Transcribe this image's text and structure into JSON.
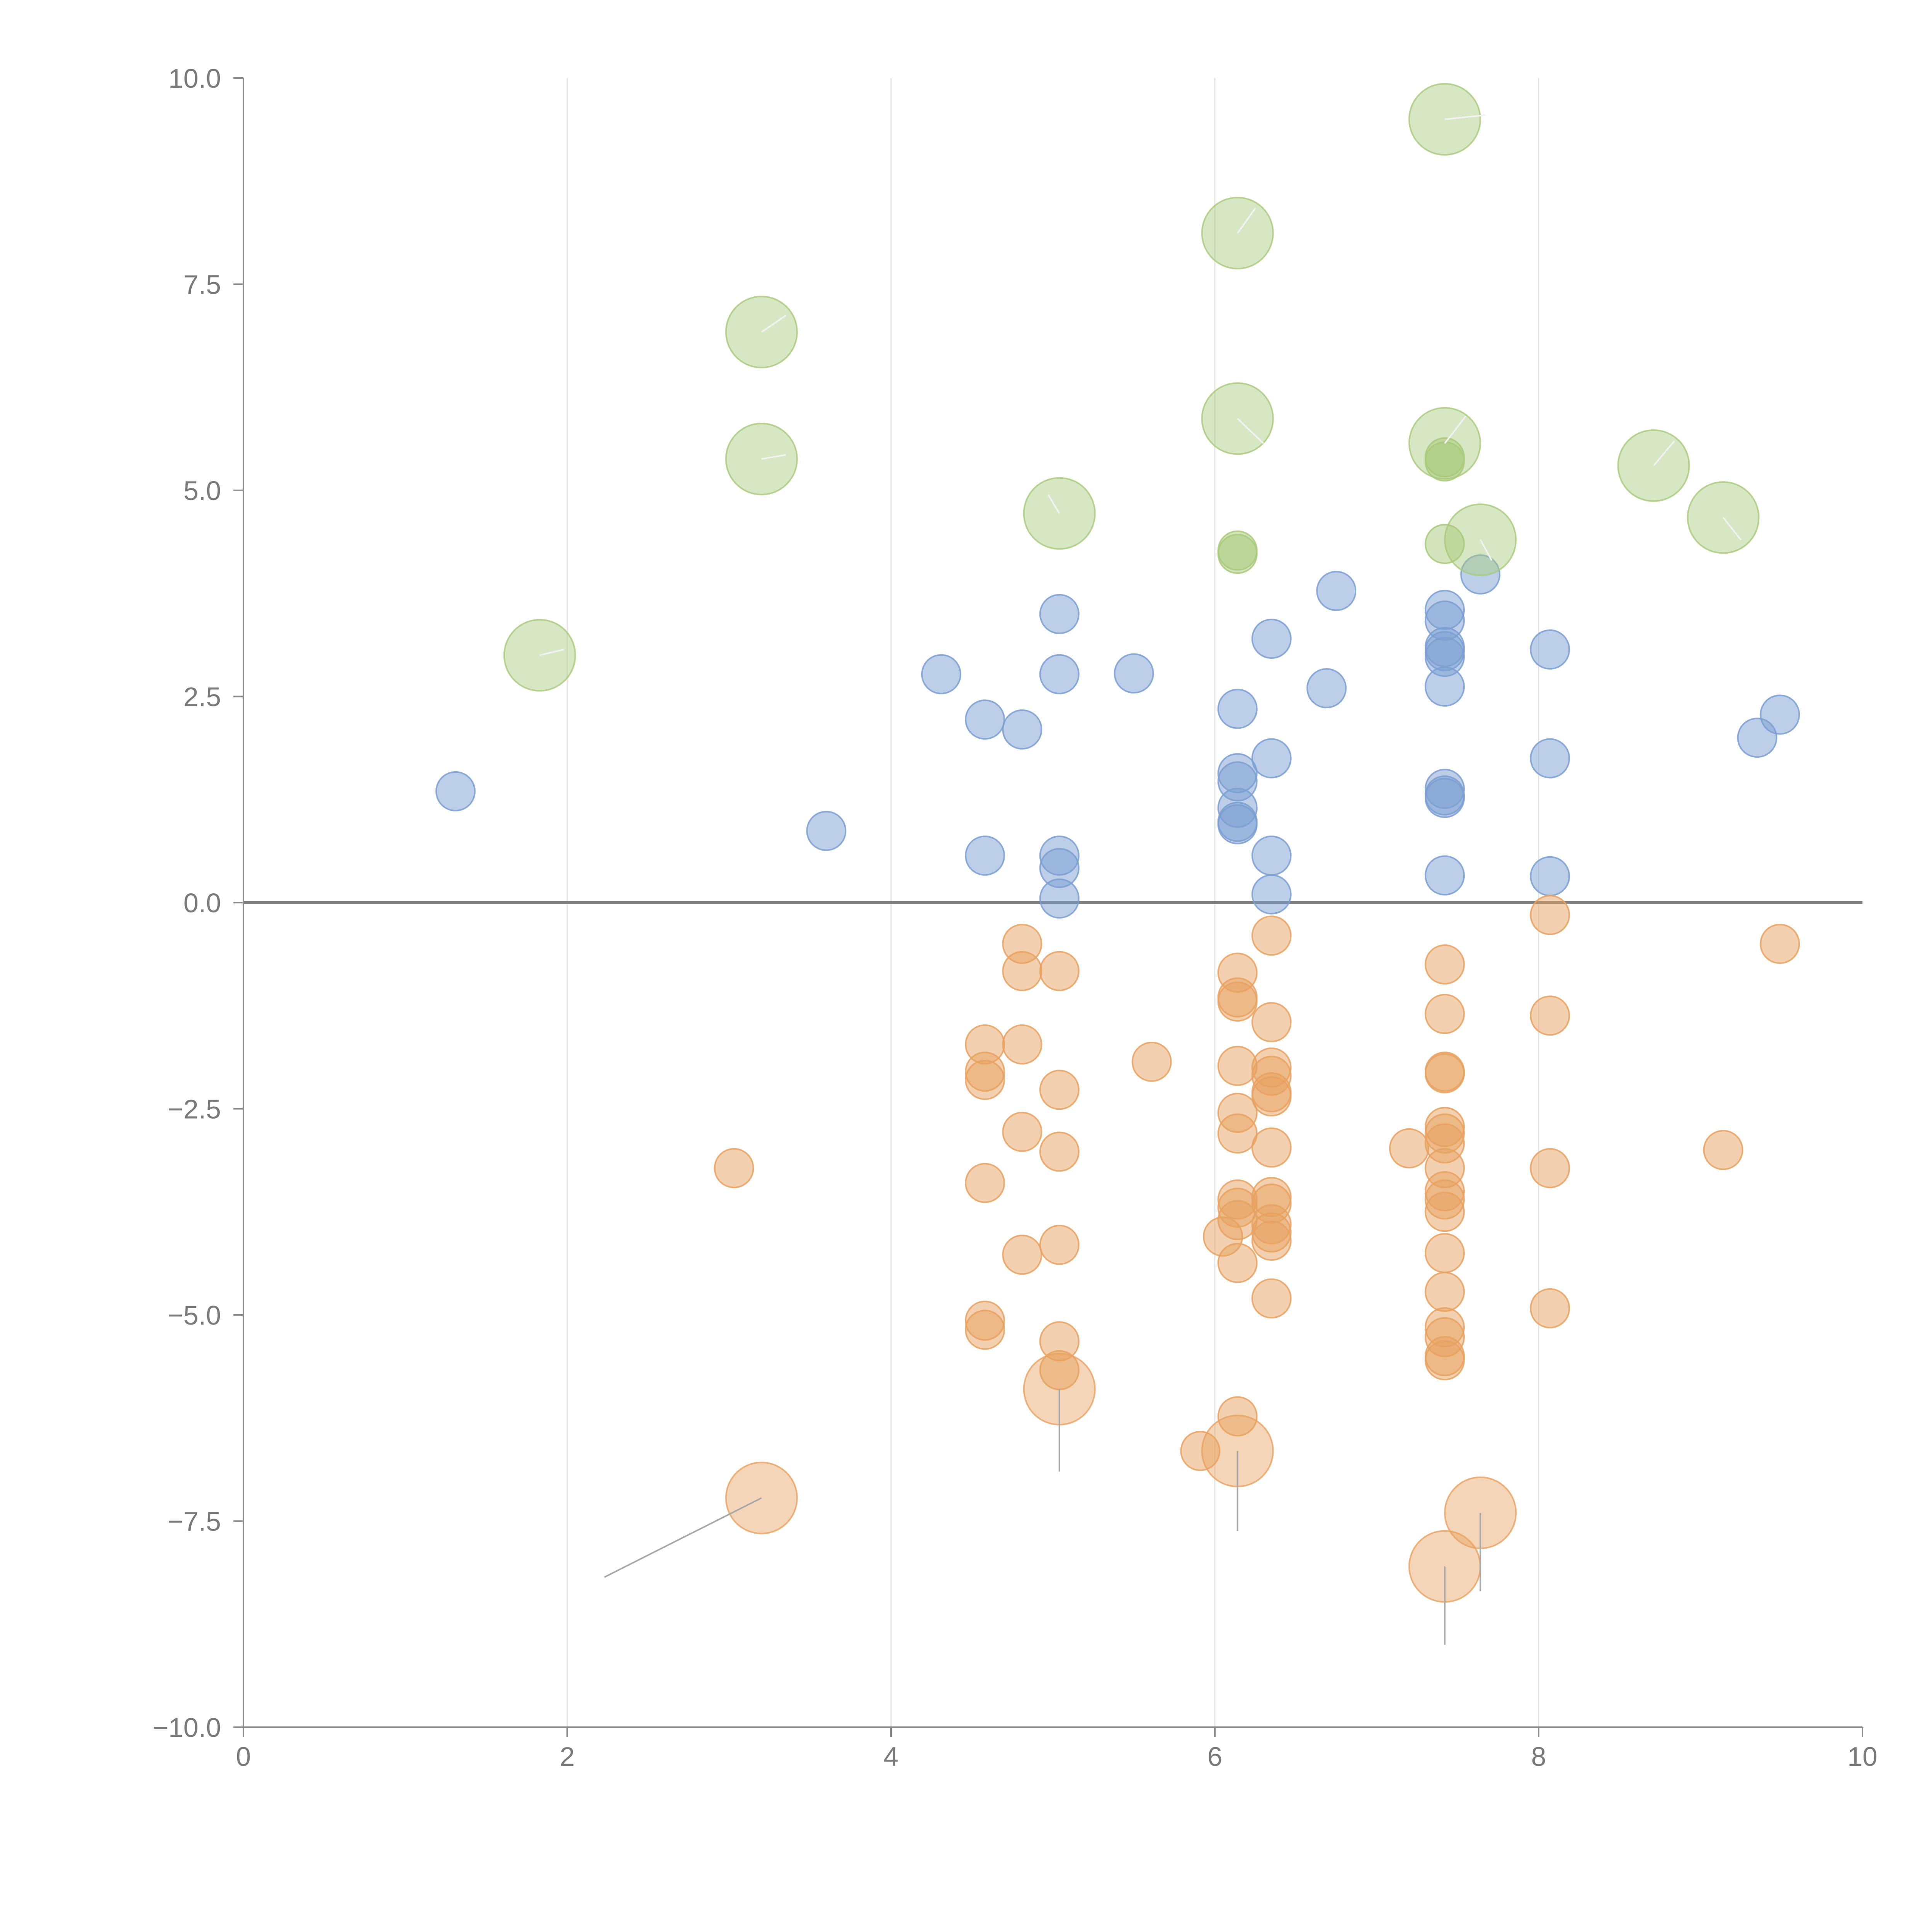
{
  "chart_data": {
    "type": "scatter",
    "title": "",
    "xlabel": "",
    "ylabel": "",
    "xlim": [
      0,
      10
    ],
    "ylim": [
      -10,
      10
    ],
    "x_ticks": [
      0,
      2,
      4,
      6,
      8,
      10
    ],
    "x_tick_labels": [
      "0",
      "2",
      "4",
      "6",
      "8",
      "10"
    ],
    "y_ticks": [
      -10,
      -7.5,
      -5,
      -2.5,
      0,
      2.5,
      5,
      7.5,
      10
    ],
    "y_tick_labels": [
      "−10.0",
      "−7.5",
      "−5.0",
      "−2.5",
      "0.0",
      "2.5",
      "5.0",
      "7.5",
      "10.0"
    ],
    "vertical_gridlines_at": [
      2,
      4,
      6,
      8
    ],
    "reference_line_y": 0,
    "colors": {
      "blue": "#7b9fd1",
      "orange": "#e8a160",
      "green": "#a8c97a",
      "leader_dark": "#a8a8a8",
      "leader_light": "#f2f2f2",
      "axis": "#8a8a8a"
    },
    "series": [
      {
        "name": "blue",
        "color": "#7b9fd1",
        "size": "small",
        "points": [
          [
            1.31,
            1.35
          ],
          [
            3.6,
            0.87
          ],
          [
            4.31,
            2.77
          ],
          [
            4.58,
            2.22
          ],
          [
            4.58,
            0.57
          ],
          [
            4.81,
            2.1
          ],
          [
            5.04,
            3.5
          ],
          [
            5.04,
            2.77
          ],
          [
            5.04,
            0.57
          ],
          [
            5.04,
            0.42
          ],
          [
            5.04,
            0.05
          ],
          [
            5.5,
            2.78
          ],
          [
            6.14,
            2.35
          ],
          [
            6.14,
            1.57
          ],
          [
            6.14,
            1.47
          ],
          [
            6.14,
            1.15
          ],
          [
            6.14,
            0.98
          ],
          [
            6.14,
            0.95
          ],
          [
            6.35,
            3.2
          ],
          [
            6.35,
            1.75
          ],
          [
            6.35,
            0.57
          ],
          [
            6.35,
            0.1
          ],
          [
            6.69,
            2.6
          ],
          [
            6.75,
            3.78
          ],
          [
            7.42,
            3.55
          ],
          [
            7.42,
            3.42
          ],
          [
            7.42,
            3.1
          ],
          [
            7.42,
            3.05
          ],
          [
            7.42,
            2.98
          ],
          [
            7.42,
            2.62
          ],
          [
            7.42,
            1.38
          ],
          [
            7.42,
            1.3
          ],
          [
            7.42,
            1.27
          ],
          [
            7.42,
            0.33
          ],
          [
            7.64,
            3.98
          ],
          [
            8.07,
            3.07
          ],
          [
            8.07,
            1.75
          ],
          [
            8.07,
            0.32
          ],
          [
            9.35,
            2.0
          ],
          [
            9.49,
            2.28
          ]
        ]
      },
      {
        "name": "orange",
        "color": "#e8a160",
        "size": "small",
        "points": [
          [
            3.03,
            -3.22
          ],
          [
            4.58,
            -1.72
          ],
          [
            4.58,
            -2.05
          ],
          [
            4.58,
            -2.15
          ],
          [
            4.58,
            -3.4
          ],
          [
            4.58,
            -5.07
          ],
          [
            4.58,
            -5.18
          ],
          [
            4.81,
            -0.5
          ],
          [
            4.81,
            -0.83
          ],
          [
            4.81,
            -1.72
          ],
          [
            4.81,
            -2.78
          ],
          [
            4.81,
            -4.27
          ],
          [
            5.04,
            -0.83
          ],
          [
            5.04,
            -2.27
          ],
          [
            5.04,
            -3.02
          ],
          [
            5.04,
            -4.15
          ],
          [
            5.04,
            -5.32
          ],
          [
            5.04,
            -5.67
          ],
          [
            5.61,
            -1.93
          ],
          [
            5.91,
            -6.65
          ],
          [
            6.05,
            -4.05
          ],
          [
            6.14,
            -0.85
          ],
          [
            6.14,
            -1.15
          ],
          [
            6.14,
            -1.2
          ],
          [
            6.14,
            -1.98
          ],
          [
            6.14,
            -2.55
          ],
          [
            6.14,
            -2.8
          ],
          [
            6.14,
            -3.6
          ],
          [
            6.14,
            -3.7
          ],
          [
            6.14,
            -3.85
          ],
          [
            6.14,
            -4.37
          ],
          [
            6.14,
            -6.23
          ],
          [
            6.35,
            -0.4
          ],
          [
            6.35,
            -1.45
          ],
          [
            6.35,
            -2.0
          ],
          [
            6.35,
            -2.1
          ],
          [
            6.35,
            -2.3
          ],
          [
            6.35,
            -2.35
          ],
          [
            6.35,
            -2.97
          ],
          [
            6.35,
            -3.57
          ],
          [
            6.35,
            -3.65
          ],
          [
            6.35,
            -3.9
          ],
          [
            6.35,
            -4.0
          ],
          [
            6.35,
            -4.1
          ],
          [
            6.35,
            -4.8
          ],
          [
            7.2,
            -2.98
          ],
          [
            7.42,
            -0.75
          ],
          [
            7.42,
            -1.35
          ],
          [
            7.42,
            -2.05
          ],
          [
            7.42,
            -2.07
          ],
          [
            7.42,
            -2.72
          ],
          [
            7.42,
            -2.8
          ],
          [
            7.42,
            -2.92
          ],
          [
            7.42,
            -3.22
          ],
          [
            7.42,
            -3.5
          ],
          [
            7.42,
            -3.6
          ],
          [
            7.42,
            -3.75
          ],
          [
            7.42,
            -4.25
          ],
          [
            7.42,
            -4.72
          ],
          [
            7.42,
            -5.15
          ],
          [
            7.42,
            -5.27
          ],
          [
            7.42,
            -5.5
          ],
          [
            7.42,
            -5.55
          ],
          [
            8.07,
            -0.15
          ],
          [
            8.07,
            -1.37
          ],
          [
            8.07,
            -3.22
          ],
          [
            8.07,
            -4.92
          ],
          [
            9.14,
            -3.0
          ],
          [
            9.49,
            -0.5
          ]
        ]
      },
      {
        "name": "green",
        "color": "#a8c97a",
        "size": "small",
        "points": [
          [
            6.14,
            4.27
          ],
          [
            6.14,
            4.23
          ],
          [
            7.42,
            5.4
          ],
          [
            7.42,
            5.35
          ],
          [
            7.42,
            4.35
          ]
        ]
      }
    ],
    "highlighted_points": [
      {
        "series": "green",
        "x": 1.83,
        "y": 3.0,
        "leader_to": [
          1.98,
          3.07
        ]
      },
      {
        "series": "green",
        "x": 3.2,
        "y": 6.92,
        "leader_to": [
          3.35,
          7.12
        ]
      },
      {
        "series": "green",
        "x": 3.2,
        "y": 5.38,
        "leader_to": [
          3.35,
          5.43
        ]
      },
      {
        "series": "green",
        "x": 5.04,
        "y": 4.72,
        "leader_to": [
          4.97,
          4.95
        ]
      },
      {
        "series": "green",
        "x": 6.14,
        "y": 8.12,
        "leader_to": [
          6.25,
          8.42
        ]
      },
      {
        "series": "green",
        "x": 6.14,
        "y": 5.87,
        "leader_to": [
          6.3,
          5.57
        ]
      },
      {
        "series": "green",
        "x": 7.42,
        "y": 9.5,
        "leader_to": [
          7.67,
          9.55
        ]
      },
      {
        "series": "green",
        "x": 7.42,
        "y": 5.57,
        "leader_to": [
          7.55,
          5.9
        ]
      },
      {
        "series": "green",
        "x": 7.64,
        "y": 4.4,
        "leader_to": [
          7.71,
          4.15
        ]
      },
      {
        "series": "green",
        "x": 8.71,
        "y": 5.3,
        "leader_to": [
          8.84,
          5.6
        ]
      },
      {
        "series": "green",
        "x": 9.14,
        "y": 4.67,
        "leader_to": [
          9.25,
          4.4
        ]
      },
      {
        "series": "orange",
        "x": 3.2,
        "y": -7.22,
        "leader_to": [
          2.23,
          -8.18
        ]
      },
      {
        "series": "orange",
        "x": 5.04,
        "y": -5.9,
        "leader_to": [
          5.04,
          -6.9
        ]
      },
      {
        "series": "orange",
        "x": 6.14,
        "y": -6.65,
        "leader_to": [
          6.14,
          -7.62
        ]
      },
      {
        "series": "orange",
        "x": 7.42,
        "y": -8.05,
        "leader_to": [
          7.42,
          -9.0
        ]
      },
      {
        "series": "orange",
        "x": 7.64,
        "y": -7.4,
        "leader_to": [
          7.64,
          -8.35
        ]
      }
    ]
  }
}
